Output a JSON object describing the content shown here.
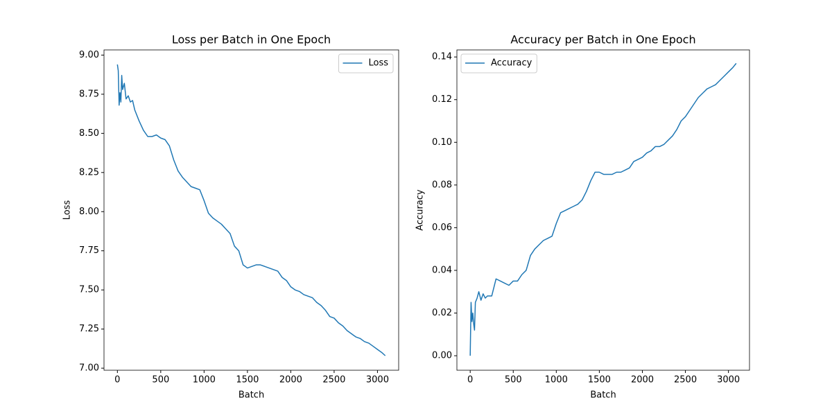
{
  "chart_data": [
    {
      "type": "line",
      "title": "Loss per Batch in One Epoch",
      "xlabel": "Batch",
      "ylabel": "Loss",
      "x": [
        0,
        10,
        20,
        30,
        40,
        50,
        60,
        80,
        100,
        125,
        150,
        175,
        200,
        250,
        300,
        350,
        400,
        450,
        500,
        550,
        600,
        650,
        700,
        750,
        800,
        850,
        900,
        950,
        1000,
        1050,
        1100,
        1150,
        1200,
        1250,
        1300,
        1350,
        1400,
        1450,
        1500,
        1550,
        1600,
        1650,
        1700,
        1750,
        1800,
        1850,
        1900,
        1950,
        2000,
        2050,
        2100,
        2150,
        2200,
        2250,
        2300,
        2350,
        2400,
        2450,
        2500,
        2550,
        2600,
        2650,
        2700,
        2750,
        2800,
        2850,
        2900,
        2950,
        3000,
        3050,
        3090
      ],
      "series": [
        {
          "name": "Loss",
          "color": "#1f77b4",
          "values": [
            8.94,
            8.9,
            8.68,
            8.76,
            8.7,
            8.87,
            8.78,
            8.82,
            8.72,
            8.74,
            8.7,
            8.71,
            8.65,
            8.58,
            8.52,
            8.48,
            8.48,
            8.49,
            8.47,
            8.46,
            8.42,
            8.33,
            8.26,
            8.22,
            8.19,
            8.16,
            8.15,
            8.14,
            8.07,
            7.99,
            7.96,
            7.94,
            7.92,
            7.89,
            7.86,
            7.78,
            7.75,
            7.66,
            7.64,
            7.65,
            7.66,
            7.66,
            7.65,
            7.64,
            7.63,
            7.62,
            7.58,
            7.56,
            7.52,
            7.5,
            7.49,
            7.47,
            7.46,
            7.45,
            7.42,
            7.4,
            7.37,
            7.33,
            7.32,
            7.29,
            7.27,
            7.24,
            7.22,
            7.2,
            7.19,
            7.17,
            7.16,
            7.14,
            7.12,
            7.1,
            7.08
          ]
        }
      ],
      "xlim": [
        -154.5,
        3244.5
      ],
      "xticks": [
        0,
        500,
        1000,
        1500,
        2000,
        2500,
        3000
      ],
      "ylim": [
        6.987,
        9.033
      ],
      "yticks": [
        {
          "value": 7,
          "label": "7.00"
        },
        7.25,
        {
          "value": 7.5,
          "label": "7.50"
        },
        7.75,
        {
          "value": 8,
          "label": "8.00"
        },
        8.25,
        {
          "value": 8.5,
          "label": "8.50"
        },
        8.75,
        {
          "value": 9,
          "label": "9.00"
        }
      ],
      "grid": false,
      "legend": "upper right"
    },
    {
      "type": "line",
      "title": "Accuracy per Batch in One Epoch",
      "xlabel": "Batch",
      "ylabel": "Accuracy",
      "x": [
        0,
        10,
        20,
        30,
        40,
        50,
        60,
        80,
        100,
        125,
        150,
        175,
        200,
        250,
        300,
        350,
        400,
        450,
        500,
        550,
        600,
        650,
        700,
        750,
        800,
        850,
        900,
        950,
        1000,
        1050,
        1100,
        1150,
        1200,
        1250,
        1300,
        1350,
        1400,
        1450,
        1500,
        1550,
        1600,
        1650,
        1700,
        1750,
        1800,
        1850,
        1900,
        1950,
        2000,
        2050,
        2100,
        2150,
        2200,
        2250,
        2300,
        2350,
        2400,
        2450,
        2500,
        2550,
        2600,
        2650,
        2700,
        2750,
        2800,
        2850,
        2900,
        2950,
        3000,
        3050,
        3090
      ],
      "series": [
        {
          "name": "Accuracy",
          "color": "#1f77b4",
          "values": [
            0,
            0.025,
            0.016,
            0.02,
            0.015,
            0.012,
            0.025,
            0.027,
            0.03,
            0.026,
            0.029,
            0.027,
            0.028,
            0.028,
            0.036,
            0.035,
            0.034,
            0.033,
            0.035,
            0.035,
            0.038,
            0.04,
            0.047,
            0.05,
            0.052,
            0.054,
            0.055,
            0.056,
            0.062,
            0.067,
            0.068,
            0.069,
            0.07,
            0.071,
            0.073,
            0.077,
            0.082,
            0.086,
            0.086,
            0.085,
            0.085,
            0.085,
            0.086,
            0.086,
            0.087,
            0.088,
            0.091,
            0.092,
            0.093,
            0.095,
            0.096,
            0.098,
            0.098,
            0.099,
            0.101,
            0.103,
            0.106,
            0.11,
            0.112,
            0.115,
            0.118,
            0.121,
            0.123,
            0.125,
            0.126,
            0.127,
            0.129,
            0.131,
            0.133,
            0.135,
            0.137
          ]
        }
      ],
      "xlim": [
        -154.5,
        3244.5
      ],
      "xticks": [
        0,
        500,
        1000,
        1500,
        2000,
        2500,
        3000
      ],
      "ylim": [
        -0.0068,
        0.1433
      ],
      "yticks": [
        {
          "value": 0,
          "label": "0.00"
        },
        0.02,
        0.04,
        0.06,
        0.08,
        {
          "value": 0.1,
          "label": "0.10"
        },
        0.12,
        0.14
      ],
      "grid": false,
      "legend": "upper left"
    }
  ]
}
